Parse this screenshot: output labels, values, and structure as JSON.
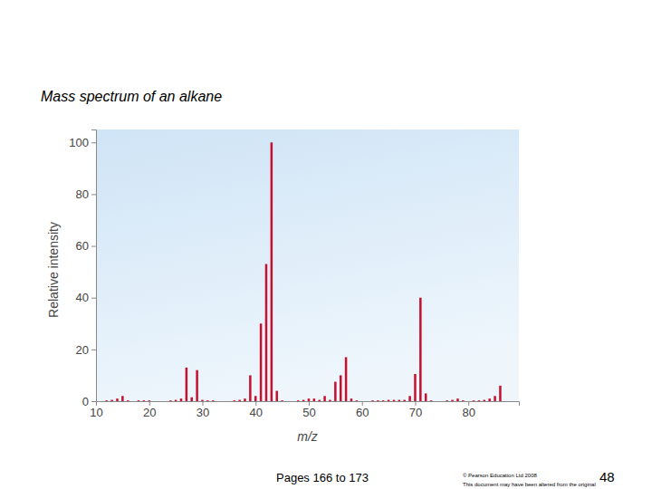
{
  "chart_data": {
    "type": "bar",
    "title": "Mass spectrum of an alkane",
    "x_label": "m/z",
    "y_label": "Relative intensity",
    "x": [
      12,
      13,
      14,
      15,
      16,
      18,
      19,
      20,
      24,
      25,
      26,
      27,
      28,
      29,
      30,
      31,
      32,
      36,
      37,
      38,
      39,
      40,
      41,
      42,
      43,
      44,
      45,
      48,
      49,
      50,
      51,
      52,
      53,
      54,
      55,
      56,
      57,
      58,
      59,
      62,
      63,
      64,
      65,
      66,
      67,
      68,
      69,
      70,
      71,
      72,
      73,
      76,
      77,
      78,
      79,
      81,
      82,
      83,
      84,
      85,
      86
    ],
    "values": [
      0.3,
      0.5,
      1,
      2,
      0.3,
      0.3,
      0.3,
      0.3,
      0.3,
      0.5,
      1,
      13,
      1.5,
      12,
      0.5,
      0.3,
      0.3,
      0.3,
      0.5,
      1,
      10,
      2,
      30,
      53,
      100,
      4,
      0.3,
      0.3,
      0.5,
      1,
      1,
      0.5,
      2,
      0.5,
      7.5,
      10,
      17,
      1,
      0.3,
      0.3,
      0.3,
      0.3,
      0.5,
      0.5,
      0.5,
      0.5,
      2,
      10.5,
      40,
      3,
      0.3,
      0.3,
      0.5,
      1,
      0.3,
      0.3,
      0.3,
      0.5,
      1,
      2,
      6
    ],
    "color": "#c8102e",
    "xlim": [
      10,
      89.5
    ],
    "xticks": [
      10,
      20,
      30,
      40,
      50,
      60,
      70,
      80
    ],
    "ylim": [
      0,
      105
    ],
    "yticks": [
      0,
      20,
      40,
      60,
      80,
      100
    ]
  },
  "footer": {
    "pages": "Pages 166 to 173",
    "copyright": "© Pearson Education Ltd 2008",
    "notice": "This document may have been altered from the original",
    "page_number": "48"
  }
}
